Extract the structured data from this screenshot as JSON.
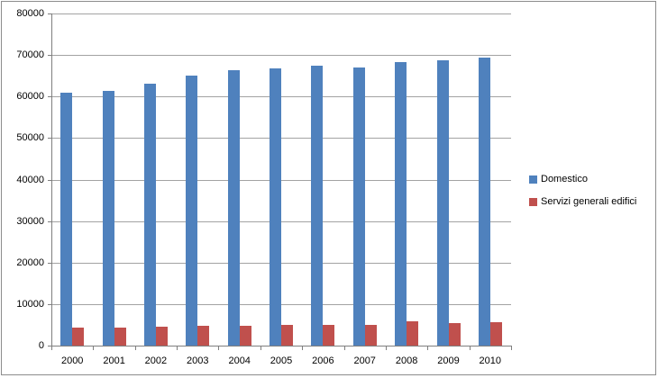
{
  "chart_data": {
    "type": "bar",
    "title": "",
    "xlabel": "",
    "ylabel": "",
    "categories": [
      "2000",
      "2001",
      "2002",
      "2003",
      "2004",
      "2005",
      "2006",
      "2007",
      "2008",
      "2009",
      "2010"
    ],
    "series": [
      {
        "name": "Domestico",
        "color": "#4F81BD",
        "values": [
          61000,
          61400,
          63100,
          65000,
          66400,
          66700,
          67400,
          67000,
          68300,
          68800,
          69400
        ]
      },
      {
        "name": "Servizi generali edifici",
        "color": "#C0504D",
        "values": [
          4300,
          4400,
          4500,
          4700,
          4800,
          5000,
          5000,
          5100,
          5800,
          5500,
          5600
        ]
      }
    ],
    "ylim": [
      0,
      80000
    ],
    "ytick_step": 10000,
    "ytick_labels": [
      "0",
      "10000",
      "20000",
      "30000",
      "40000",
      "50000",
      "60000",
      "70000",
      "80000"
    ],
    "grid": "horizontal",
    "legend_position": "right"
  },
  "colors": {
    "gridline": "#A3A3A3",
    "axis": "#7F7F7F",
    "text": "#000000",
    "frame_border": "#8C8C8C",
    "background": "#FFFFFF"
  }
}
